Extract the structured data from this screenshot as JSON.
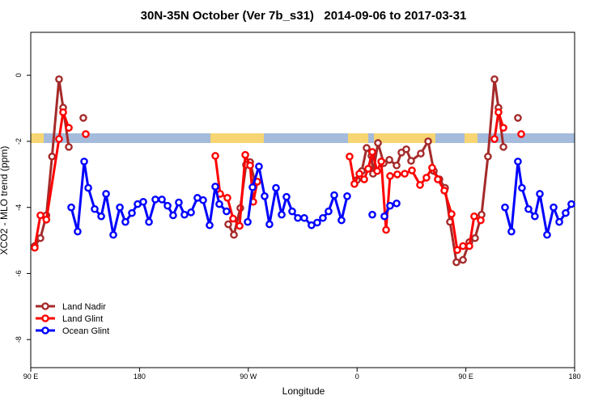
{
  "chart_data": {
    "type": "line",
    "title": "30N-35N October (Ver 7b_s31)   2014-09-06 to 2017-03-31",
    "x_label": "Longitude",
    "y_label": "XCO2 - MLO trend (ppm)",
    "xlim": [
      90,
      540
    ],
    "xticks": [
      {
        "value": 90,
        "label": "90 E"
      },
      180,
      {
        "value": 270,
        "label": "90 W"
      },
      {
        "value": 360,
        "label": "0"
      },
      {
        "value": 450,
        "label": "90 E"
      },
      {
        "value": 540,
        "label": "180"
      }
    ],
    "ylim": [
      -8.85,
      1.3
    ],
    "yticks": [
      0,
      -2,
      -4,
      -6,
      -8
    ],
    "legend": "bottom-left",
    "series": [
      {
        "name": "Land Nadir",
        "color": "#a52a2a",
        "x": [
          93.3,
          98,
          102.9,
          107.6,
          113.4,
          116.8,
          121.5,
          null,
          133.5,
          null,
          253.4,
          258.1,
          263.4,
          268.1,
          271.5,
          275.5,
          null,
          359.9,
          363.9,
          367.9,
          371.9,
          373.2,
          377.3,
          382.0,
          386.7,
          392.7,
          396.7,
          400.7,
          404.7,
          412.7,
          418.8,
          423.5,
          428.1,
          432.8,
          436.9,
          442.2,
          447.6,
          452.9,
          457.6,
          463.0,
          468.3,
          473.7,
          477.0,
          481.1,
          null,
          493.1
        ],
        "values": [
          -5.17,
          -4.93,
          -4.24,
          -2.46,
          -0.12,
          -0.98,
          -2.17,
          null,
          -1.29,
          null,
          -4.51,
          -4.83,
          -4.02,
          -2.71,
          -2.63,
          -3.22,
          null,
          -3.17,
          -2.9,
          -2.2,
          -2.44,
          -2.98,
          -2.05,
          -2.66,
          -2.56,
          -2.73,
          -2.34,
          -2.24,
          -2.59,
          -2.37,
          -2.0,
          -2.9,
          -3.15,
          -3.41,
          -4.44,
          -5.66,
          -5.59,
          -5.05,
          -4.93,
          -4.22,
          -2.46,
          -0.12,
          -0.98,
          -2.17,
          null,
          -1.29
        ]
      },
      {
        "name": "Land Glint",
        "color": "#ff0000",
        "x": [
          93.3,
          98,
          102.9,
          113.4,
          116.8,
          121.5,
          null,
          135.5,
          null,
          242.7,
          246.7,
          252.7,
          257.4,
          262.8,
          267.5,
          271.5,
          274.1,
          277.5,
          null,
          353.8,
          357.8,
          361.9,
          365.9,
          369.2,
          372.6,
          376.6,
          380.0,
          384.0,
          387.3,
          393.3,
          399.4,
          405.4,
          412.1,
          417.4,
          422.1,
          426.8,
          432.2,
          438.2,
          442.9,
          447.6,
          452.9,
          456.9,
          462.3,
          null,
          473.7,
          477.0,
          481.1,
          null,
          495.8
        ],
        "values": [
          -5.22,
          -4.24,
          -4.37,
          -1.93,
          -1.12,
          -1.59,
          null,
          -1.78,
          null,
          -2.44,
          -3.59,
          -3.71,
          -4.34,
          -4.56,
          -2.41,
          -2.73,
          -3.83,
          -3.22,
          null,
          -2.46,
          -3.29,
          -2.98,
          -3.15,
          -2.83,
          -2.32,
          -2.9,
          -2.61,
          -4.68,
          -3.05,
          -3.0,
          -2.98,
          -2.88,
          -3.32,
          -3.1,
          -2.8,
          -3.15,
          -3.49,
          -4.2,
          -5.29,
          -5.17,
          -5.17,
          -4.27,
          -4.39,
          null,
          -1.93,
          -1.12,
          -1.59,
          null,
          -1.78
        ]
      },
      {
        "name": "Ocean Glint",
        "color": "#0000ff",
        "x": [
          123.5,
          128.8,
          134.2,
          137.6,
          142.9,
          148.3,
          152.3,
          158.3,
          163.7,
          168.3,
          173.7,
          178.4,
          183.1,
          187.8,
          193.1,
          198.5,
          203.2,
          207.8,
          212.5,
          217.2,
          222.6,
          227.9,
          232.6,
          238.0,
          242.7,
          246.0,
          252.0,
          null,
          269.5,
          273.5,
          278.8,
          283.5,
          287.5,
          292.9,
          297.6,
          301.6,
          306.3,
          311.0,
          316.3,
          322.3,
          327.0,
          331.7,
          336.4,
          341.1,
          347.1,
          351.8,
          null,
          372.6,
          null,
          382.6,
          387.3,
          392.7,
          null,
          482.4,
          487.7,
          493.1,
          496.4,
          501.8,
          507.1,
          511.2,
          517.2,
          522.6,
          527.3,
          532.6,
          537.3
        ],
        "values": [
          -4.0,
          -4.73,
          -2.61,
          -3.41,
          -4.05,
          -4.27,
          -3.59,
          -4.83,
          -4.0,
          -4.44,
          -4.17,
          -3.9,
          -3.83,
          -4.44,
          -3.76,
          -3.76,
          -3.95,
          -4.24,
          -3.85,
          -4.22,
          -4.15,
          -3.71,
          -3.78,
          -4.54,
          -3.37,
          -3.9,
          -4.12,
          null,
          -4.44,
          -3.39,
          -2.76,
          -3.66,
          -4.51,
          -3.41,
          -4.22,
          -3.68,
          -4.12,
          -4.32,
          -4.32,
          -4.54,
          -4.46,
          -4.32,
          -4.12,
          -3.63,
          -4.39,
          -3.66,
          null,
          -4.22,
          null,
          -4.27,
          -3.95,
          -3.88,
          null,
          -4.0,
          -4.73,
          -2.61,
          -3.41,
          -4.05,
          -4.27,
          -3.59,
          -4.83,
          -4.0,
          -4.44,
          -4.17,
          -3.9
        ]
      }
    ]
  }
}
